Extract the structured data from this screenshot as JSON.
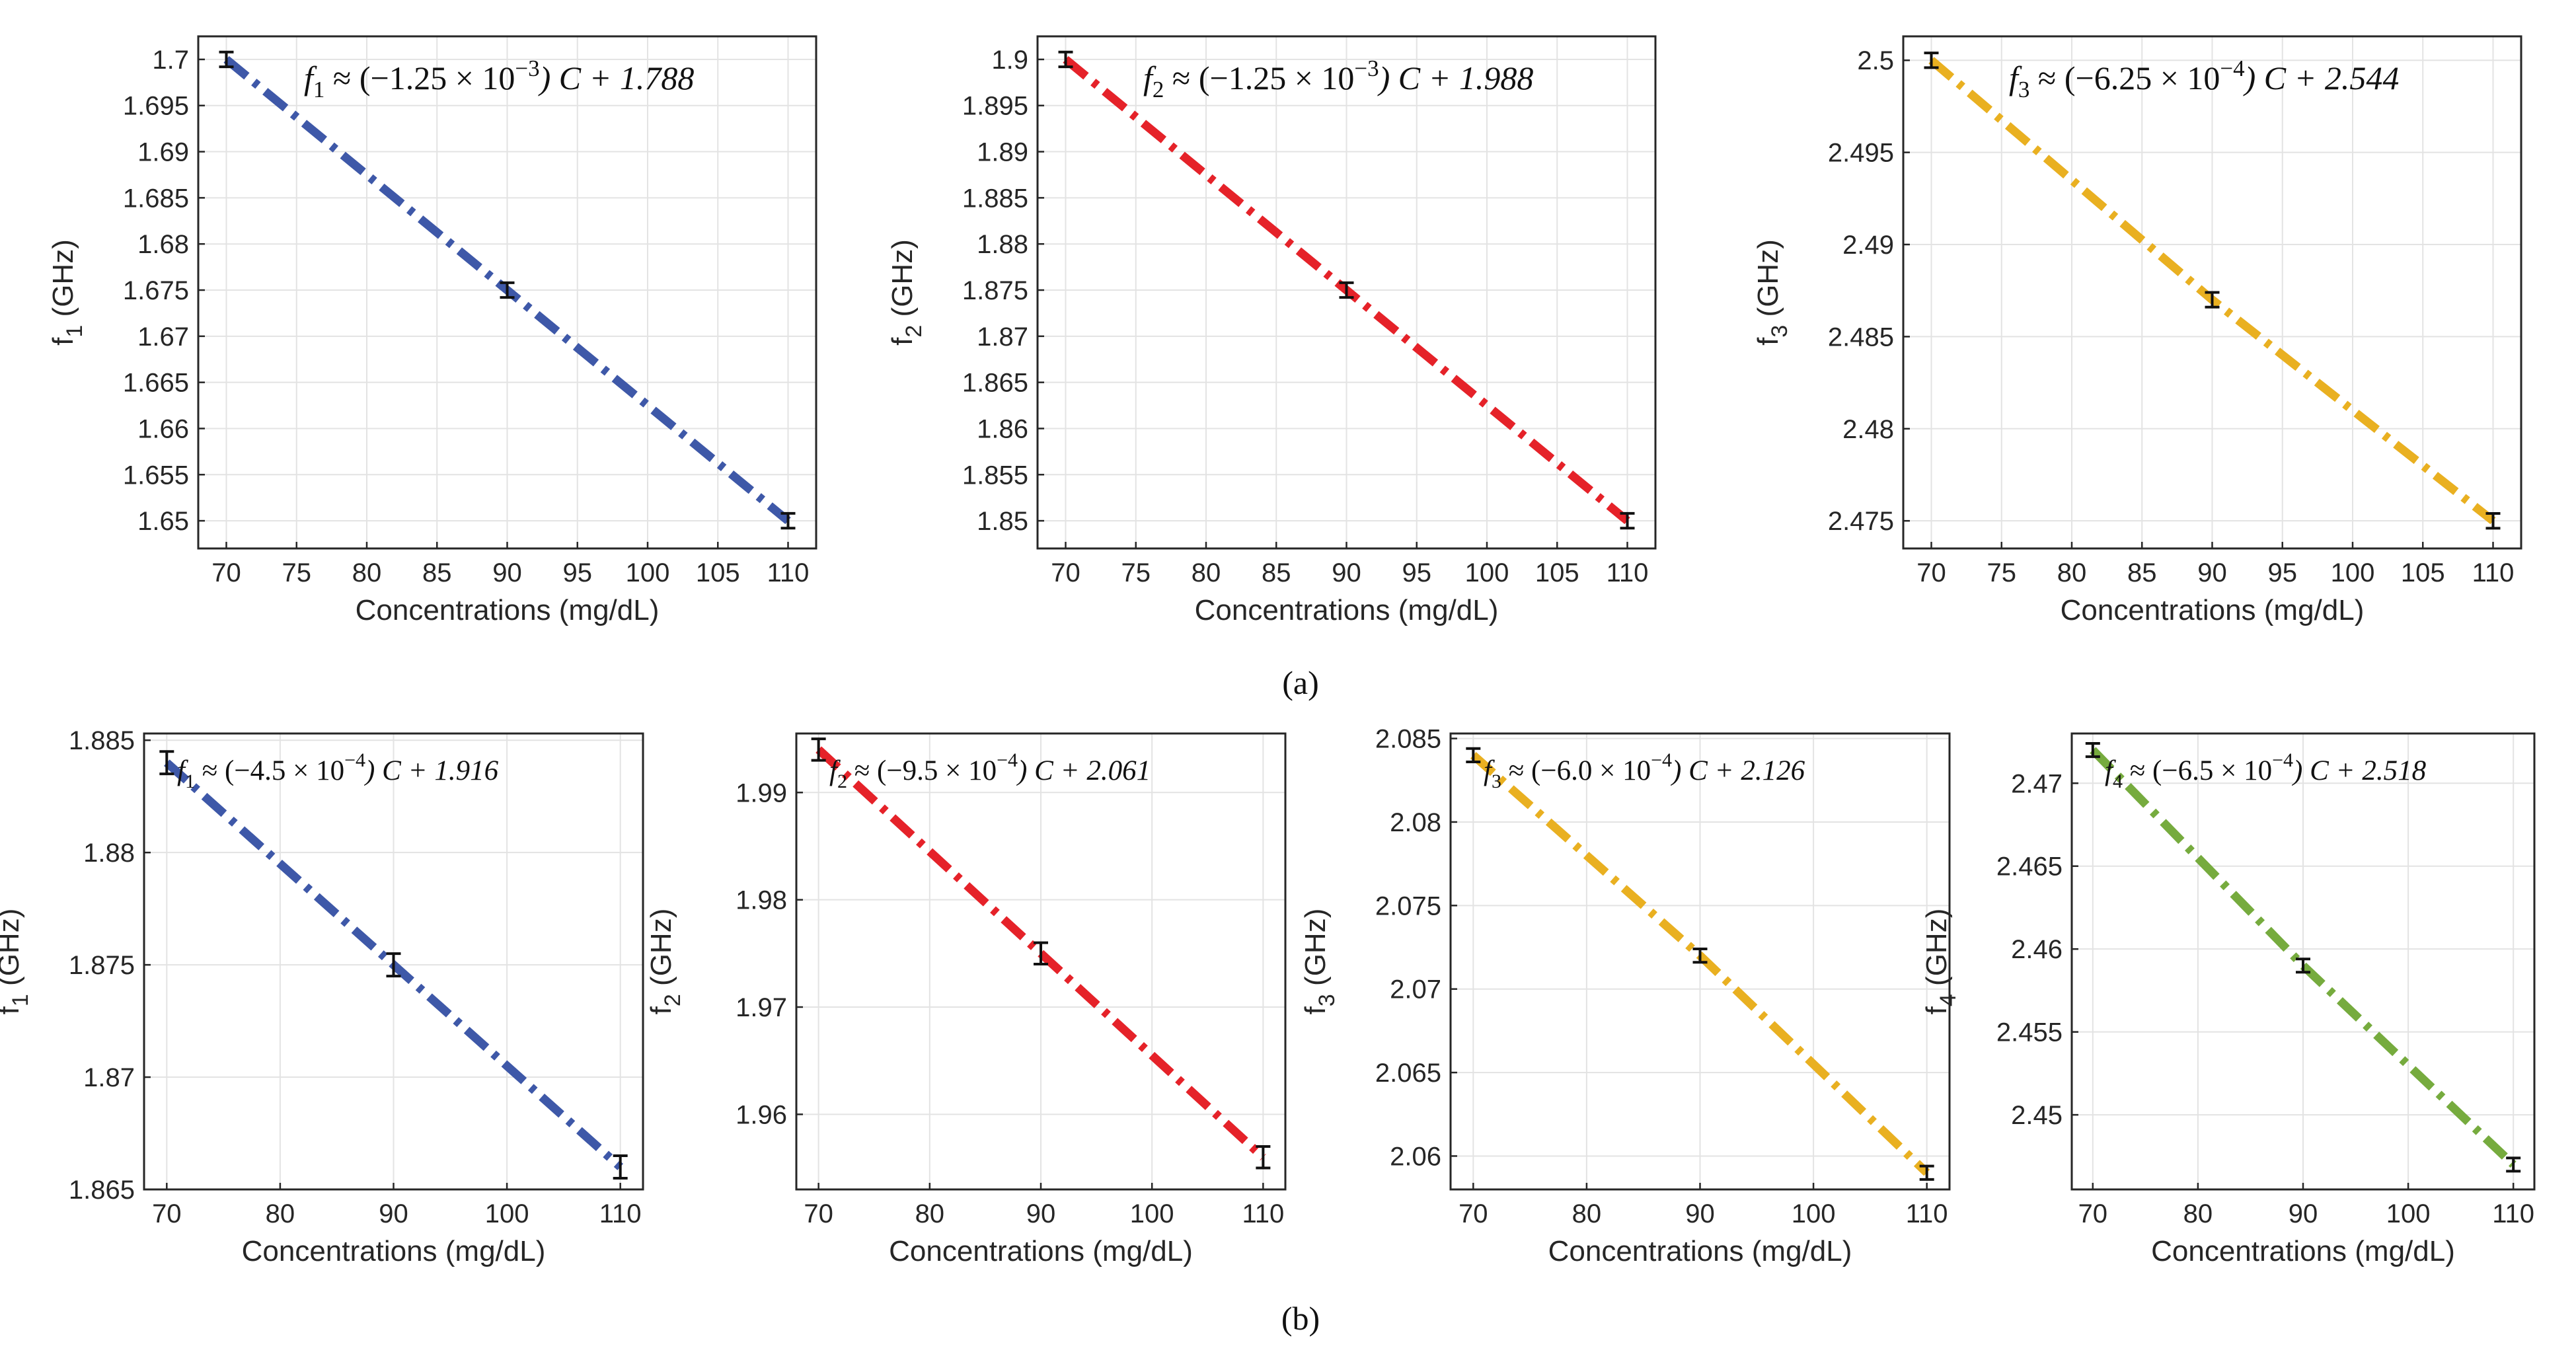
{
  "panel_labels": {
    "a": "(a)",
    "b": "(b)"
  },
  "chart_data": [
    {
      "id": "a1",
      "type": "line",
      "row": "a",
      "equation": {
        "lhs": "f",
        "sub": "1",
        "coef": "(−1.25 × 10",
        "exp": "−3",
        "rest": ") C + 1.788"
      },
      "xlabel": "Concentrations (mg/dL)",
      "ylabel": "f",
      "ylabel_sub": "1",
      "ylabel_unit": " (GHz)",
      "xlim": [
        68,
        112
      ],
      "ylim": [
        1.647,
        1.7025
      ],
      "xticks": [
        70,
        75,
        80,
        85,
        90,
        95,
        100,
        105,
        110
      ],
      "xtick_labels": [
        "70",
        "75",
        "80",
        "85",
        "90",
        "95",
        "100",
        "105",
        "110"
      ],
      "yticks": [
        1.65,
        1.655,
        1.66,
        1.665,
        1.67,
        1.675,
        1.68,
        1.685,
        1.69,
        1.695,
        1.7
      ],
      "ytick_labels": [
        "1.65",
        "1.655",
        "1.66",
        "1.665",
        "1.67",
        "1.675",
        "1.68",
        "1.685",
        "1.69",
        "1.695",
        "1.7"
      ],
      "x": [
        70,
        90,
        110
      ],
      "y": [
        1.7,
        1.675,
        1.65
      ],
      "err": [
        0.0008,
        0.0008,
        0.0008
      ],
      "color": "#3e58a8"
    },
    {
      "id": "a2",
      "type": "line",
      "row": "a",
      "equation": {
        "lhs": "f",
        "sub": "2",
        "coef": "(−1.25 × 10",
        "exp": "−3",
        "rest": ") C + 1.988"
      },
      "xlabel": "Concentrations (mg/dL)",
      "ylabel": "f",
      "ylabel_sub": "2",
      "ylabel_unit": " (GHz)",
      "xlim": [
        68,
        112
      ],
      "ylim": [
        1.847,
        1.9025
      ],
      "xticks": [
        70,
        75,
        80,
        85,
        90,
        95,
        100,
        105,
        110
      ],
      "xtick_labels": [
        "70",
        "75",
        "80",
        "85",
        "90",
        "95",
        "100",
        "105",
        "110"
      ],
      "yticks": [
        1.85,
        1.855,
        1.86,
        1.865,
        1.87,
        1.875,
        1.88,
        1.885,
        1.89,
        1.895,
        1.9
      ],
      "ytick_labels": [
        "1.85",
        "1.855",
        "1.86",
        "1.865",
        "1.87",
        "1.875",
        "1.88",
        "1.885",
        "1.89",
        "1.895",
        "1.9"
      ],
      "x": [
        70,
        90,
        110
      ],
      "y": [
        1.9,
        1.875,
        1.85
      ],
      "err": [
        0.0008,
        0.0008,
        0.0008
      ],
      "color": "#e52229"
    },
    {
      "id": "a3",
      "type": "line",
      "row": "a",
      "equation": {
        "lhs": "f",
        "sub": "3",
        "coef": "(−6.25 × 10",
        "exp": "−4",
        "rest": ") C + 2.544"
      },
      "xlabel": "Concentrations (mg/dL)",
      "ylabel": "f",
      "ylabel_sub": "3",
      "ylabel_unit": " (GHz)",
      "xlim": [
        68,
        112
      ],
      "ylim": [
        2.4735,
        2.5013
      ],
      "xticks": [
        70,
        75,
        80,
        85,
        90,
        95,
        100,
        105,
        110
      ],
      "xtick_labels": [
        "70",
        "75",
        "80",
        "85",
        "90",
        "95",
        "100",
        "105",
        "110"
      ],
      "yticks": [
        2.475,
        2.48,
        2.485,
        2.49,
        2.495,
        2.5
      ],
      "ytick_labels": [
        "2.475",
        "2.48",
        "2.485",
        "2.49",
        "2.495",
        "2.5"
      ],
      "x": [
        70,
        90,
        110
      ],
      "y": [
        2.5,
        2.487,
        2.475
      ],
      "err": [
        0.0004,
        0.0004,
        0.0004
      ],
      "color": "#e9b021"
    },
    {
      "id": "b1",
      "type": "line",
      "row": "b",
      "equation": {
        "lhs": "f",
        "sub": "1",
        "coef": "(−4.5 × 10",
        "exp": "−4",
        "rest": ") C + 1.916"
      },
      "xlabel": "Concentrations (mg/dL)",
      "ylabel": "f",
      "ylabel_sub": "1",
      "ylabel_unit": " (GHz)",
      "xlim": [
        68,
        112
      ],
      "ylim": [
        1.865,
        1.8853
      ],
      "xticks": [
        70,
        80,
        90,
        100,
        110
      ],
      "xtick_labels": [
        "70",
        "80",
        "90",
        "100",
        "110"
      ],
      "yticks": [
        1.865,
        1.87,
        1.875,
        1.88,
        1.885
      ],
      "ytick_labels": [
        "1.865",
        "1.87",
        "1.875",
        "1.88",
        "1.885"
      ],
      "x": [
        70,
        90,
        110
      ],
      "y": [
        1.884,
        1.875,
        1.866
      ],
      "err": [
        0.0005,
        0.0005,
        0.0005
      ],
      "color": "#3e58a8"
    },
    {
      "id": "b2",
      "type": "line",
      "row": "b",
      "equation": {
        "lhs": "f",
        "sub": "2",
        "coef": "(−9.5 × 10",
        "exp": "−4",
        "rest": ") C + 2.061"
      },
      "xlabel": "Concentrations (mg/dL)",
      "ylabel": "f",
      "ylabel_sub": "2",
      "ylabel_unit": " (GHz)",
      "xlim": [
        68,
        112
      ],
      "ylim": [
        1.953,
        1.9955
      ],
      "xticks": [
        70,
        80,
        90,
        100,
        110
      ],
      "xtick_labels": [
        "70",
        "80",
        "90",
        "100",
        "110"
      ],
      "yticks": [
        1.96,
        1.97,
        1.98,
        1.99
      ],
      "ytick_labels": [
        "1.96",
        "1.97",
        "1.98",
        "1.99"
      ],
      "x": [
        70,
        90,
        110
      ],
      "y": [
        1.994,
        1.975,
        1.956
      ],
      "err": [
        0.001,
        0.001,
        0.001
      ],
      "color": "#e52229"
    },
    {
      "id": "b3",
      "type": "line",
      "row": "b",
      "equation": {
        "lhs": "f",
        "sub": "3",
        "coef": "(−6.0 × 10",
        "exp": "−4",
        "rest": ") C + 2.126"
      },
      "xlabel": "Concentrations (mg/dL)",
      "ylabel": "f",
      "ylabel_sub": "3",
      "ylabel_unit": " (GHz)",
      "xlim": [
        68,
        112
      ],
      "ylim": [
        2.058,
        2.0853
      ],
      "xticks": [
        70,
        80,
        90,
        100,
        110
      ],
      "xtick_labels": [
        "70",
        "80",
        "90",
        "100",
        "110"
      ],
      "yticks": [
        2.06,
        2.065,
        2.07,
        2.075,
        2.08,
        2.085
      ],
      "ytick_labels": [
        "2.06",
        "2.065",
        "2.07",
        "2.075",
        "2.08",
        "2.085"
      ],
      "x": [
        70,
        90,
        110
      ],
      "y": [
        2.084,
        2.072,
        2.059
      ],
      "err": [
        0.0004,
        0.0004,
        0.0004
      ],
      "color": "#e9b021"
    },
    {
      "id": "b4",
      "type": "line",
      "row": "b",
      "equation": {
        "lhs": "f",
        "sub": "4",
        "coef": "(−6.5 × 10",
        "exp": "−4",
        "rest": ") C + 2.518"
      },
      "xlabel": "Concentrations (mg/dL)",
      "ylabel": "f",
      "ylabel_sub": "4",
      "ylabel_unit": " (GHz)",
      "xlim": [
        68,
        112
      ],
      "ylim": [
        2.4455,
        2.473
      ],
      "xticks": [
        70,
        80,
        90,
        100,
        110
      ],
      "xtick_labels": [
        "70",
        "80",
        "90",
        "100",
        "110"
      ],
      "yticks": [
        2.45,
        2.455,
        2.46,
        2.465,
        2.47
      ],
      "ytick_labels": [
        "2.45",
        "2.455",
        "2.46",
        "2.465",
        "2.47"
      ],
      "x": [
        70,
        90,
        110
      ],
      "y": [
        2.472,
        2.459,
        2.447
      ],
      "err": [
        0.0004,
        0.0004,
        0.0004
      ],
      "color": "#76ab3e"
    }
  ]
}
